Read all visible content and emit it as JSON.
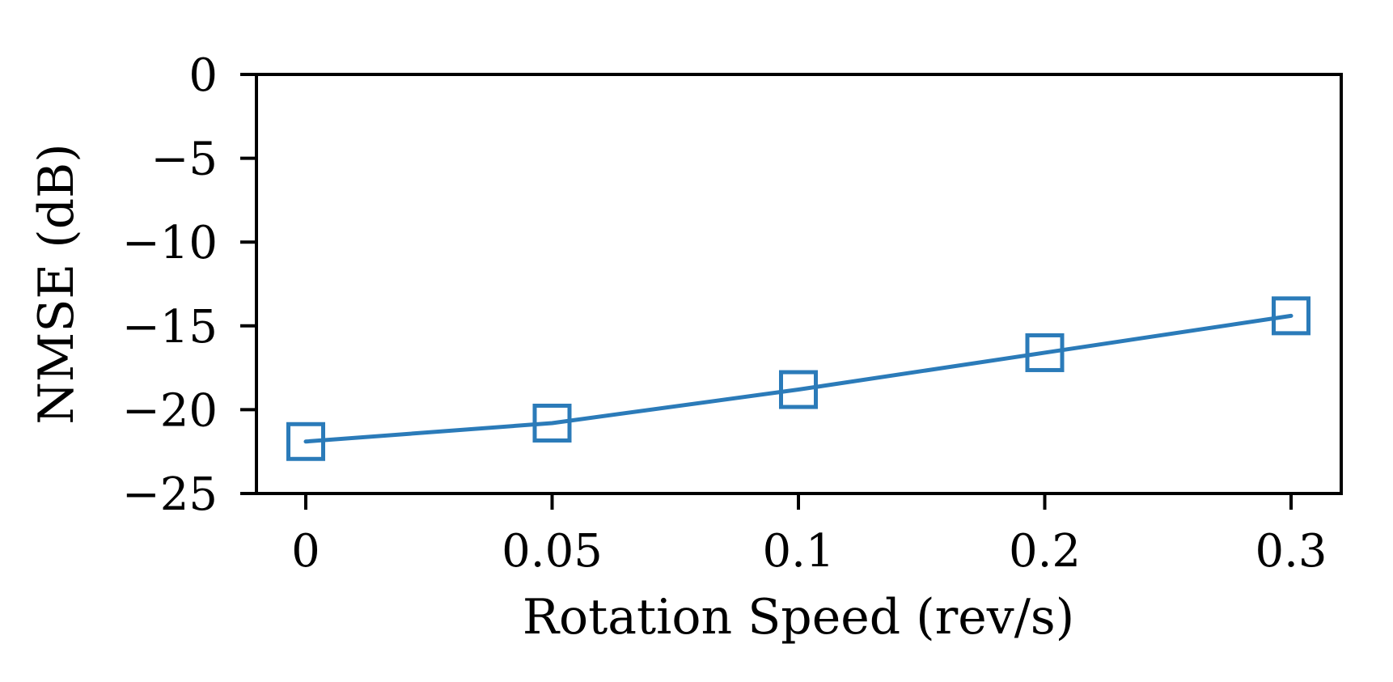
{
  "figure": {
    "background": "#ffffff"
  },
  "style": {
    "axis_color": "#000000",
    "text_color": "#000000",
    "line_color": "#2b7bb9"
  },
  "chart_data": {
    "type": "line",
    "title": "",
    "xlabel": "Rotation Speed (rev/s)",
    "ylabel": "NMSE (dB)",
    "x": [
      0,
      0.05,
      0.1,
      0.2,
      0.3
    ],
    "x_tick_labels": [
      "0",
      "0.05",
      "0.1",
      "0.2",
      "0.3"
    ],
    "x_spacing": "equal",
    "y_ticks": [
      0,
      -5,
      -10,
      -15,
      -20,
      -25
    ],
    "y_tick_labels": [
      "0",
      "−5",
      "−10",
      "−15",
      "−20",
      "−25"
    ],
    "ylim": [
      -25,
      0
    ],
    "grid": false,
    "legend": "none",
    "series": [
      {
        "name": "NMSE (dB)",
        "values": [
          -21.9,
          -20.8,
          -18.8,
          -16.6,
          -14.4
        ],
        "color": "#2b7bb9",
        "line_width": 5,
        "marker": "open-square",
        "marker_size": 43,
        "marker_fill": "none"
      }
    ]
  }
}
